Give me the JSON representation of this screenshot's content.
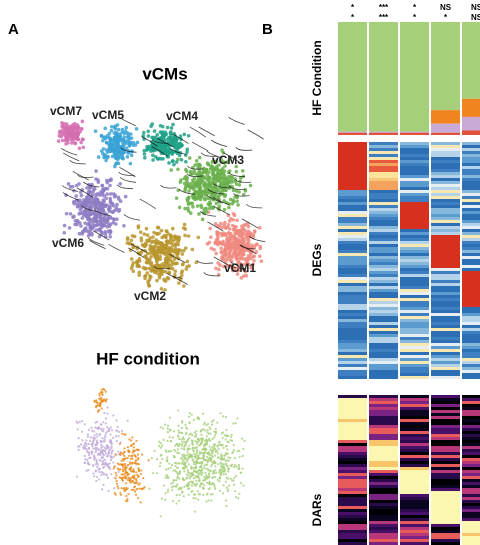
{
  "panel_a": {
    "label": "A",
    "title_top": "vCMs",
    "clusters": [
      "vCM7",
      "vCM5",
      "vCM4",
      "vCM3",
      "vCM6",
      "vCM1",
      "vCM2"
    ],
    "title_bottom": "HF condition"
  },
  "panel_b": {
    "label": "B",
    "significance": [
      [
        "*",
        "*"
      ],
      [
        "***",
        "***"
      ],
      [
        "*",
        "*"
      ],
      [
        "NS",
        "*"
      ],
      [
        "NS",
        "NS"
      ]
    ],
    "row_labels": [
      "HF Condition",
      "DEGs",
      "DARs"
    ],
    "hf_colors": [
      "#a6cf7a",
      "#f0841e",
      "#c9a9d6",
      "#e0503a"
    ],
    "hf_proportions": [
      [
        0.97,
        0,
        0.01,
        0.02
      ],
      [
        0.97,
        0,
        0.01,
        0.02
      ],
      [
        0.97,
        0,
        0.01,
        0.02
      ],
      [
        0.78,
        0.12,
        0.08,
        0.02
      ],
      [
        0.68,
        0.16,
        0.12,
        0.04
      ]
    ]
  }
}
